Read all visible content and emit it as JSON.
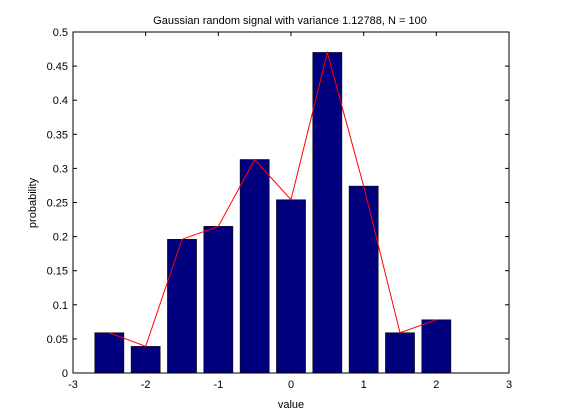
{
  "chart_data": {
    "type": "bar",
    "title": "Gaussian random signal with variance 1.12788, N = 100",
    "xlabel": "value",
    "ylabel": "probability",
    "xlim": [
      -3,
      3
    ],
    "ylim": [
      0,
      0.5
    ],
    "xticks": [
      -3,
      -2,
      -1,
      0,
      1,
      2,
      3
    ],
    "xtick_labels": [
      "-3",
      "-2",
      "-1",
      "0",
      "1",
      "2",
      "3"
    ],
    "yticks": [
      0,
      0.05,
      0.1,
      0.15,
      0.2,
      0.25,
      0.3,
      0.35,
      0.4,
      0.45,
      0.5
    ],
    "ytick_labels": [
      "0",
      "0.05",
      "0.1",
      "0.15",
      "0.2",
      "0.25",
      "0.3",
      "0.35",
      "0.4",
      "0.45",
      "0.5"
    ],
    "grid": false,
    "bar_width": 0.4,
    "bars": [
      {
        "x": -2.5,
        "value": 0.059
      },
      {
        "x": -2.0,
        "value": 0.039
      },
      {
        "x": -1.5,
        "value": 0.196
      },
      {
        "x": -1.0,
        "value": 0.215
      },
      {
        "x": -0.5,
        "value": 0.313
      },
      {
        "x": 0.0,
        "value": 0.254
      },
      {
        "x": 0.5,
        "value": 0.47
      },
      {
        "x": 1.0,
        "value": 0.274
      },
      {
        "x": 1.5,
        "value": 0.059
      },
      {
        "x": 2.0,
        "value": 0.078
      }
    ],
    "line": {
      "x": [
        -2.5,
        -2.0,
        -1.5,
        -1.0,
        -0.5,
        0.0,
        0.5,
        1.0,
        1.5,
        2.0
      ],
      "values": [
        0.059,
        0.039,
        0.196,
        0.215,
        0.313,
        0.254,
        0.47,
        0.274,
        0.059,
        0.078
      ]
    },
    "colors": {
      "bar": "#00007f",
      "line": "#ff0000"
    }
  }
}
